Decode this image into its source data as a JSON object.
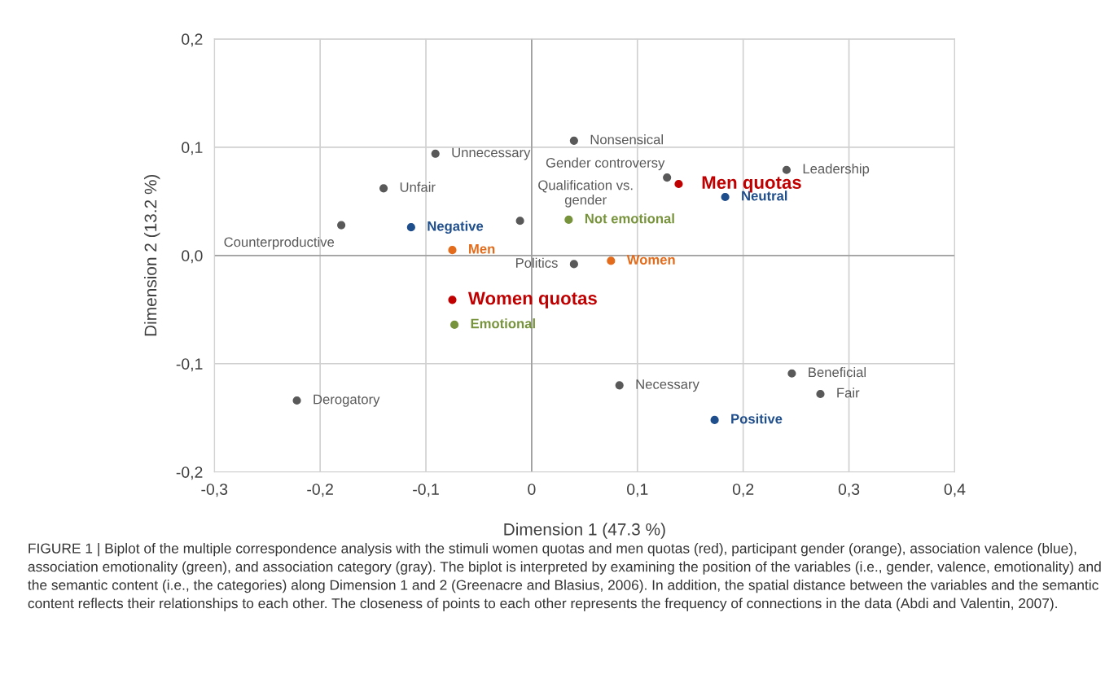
{
  "chart_data": {
    "type": "scatter",
    "xlabel": "Dimension 1 (47.3 %)",
    "ylabel": "Dimension 2 (13.2 %)",
    "xlim": [
      -0.3,
      0.4
    ],
    "ylim": [
      -0.2,
      0.2
    ],
    "xticks": [
      {
        "value": -0.3,
        "label": "-0,3"
      },
      {
        "value": -0.2,
        "label": "-0,2"
      },
      {
        "value": -0.1,
        "label": "-0,1"
      },
      0,
      {
        "value": 0.1,
        "label": "0,1"
      },
      {
        "value": 0.2,
        "label": "0,2"
      },
      {
        "value": 0.3,
        "label": "0,3"
      },
      {
        "value": 0.4,
        "label": "0,4"
      }
    ],
    "yticks": [
      {
        "value": -0.2,
        "label": "-0,2"
      },
      {
        "value": -0.1,
        "label": "-0,1"
      },
      {
        "value": 0,
        "label": "0,0"
      },
      {
        "value": 0.1,
        "label": "0,1"
      },
      {
        "value": 0.2,
        "label": "0,2"
      }
    ],
    "grid": true,
    "marker": "circle",
    "series": [
      {
        "color": "#c00000",
        "x": [
          -0.075,
          0.139
        ],
        "values": [
          -0.041,
          0.066
        ],
        "value_labels": [
          "Women quotas",
          "Men quotas"
        ]
      },
      {
        "color": "#e36c1c",
        "x": [
          -0.075,
          0.075
        ],
        "values": [
          0.005,
          -0.005
        ],
        "value_labels": [
          "Men",
          "Women"
        ]
      },
      {
        "color": "#1f4e8c",
        "x": [
          -0.114,
          0.183,
          0.173
        ],
        "values": [
          0.026,
          0.054,
          -0.152
        ],
        "value_labels": [
          "Negative",
          "Neutral",
          "Positive"
        ]
      },
      {
        "color": "#77933c",
        "x": [
          0.035,
          -0.073
        ],
        "values": [
          0.033,
          -0.064
        ],
        "value_labels": [
          "Not emotional",
          "Emotional"
        ]
      },
      {
        "color": "#595959",
        "x": [
          0.04,
          -0.091,
          -0.14,
          -0.18,
          -0.011,
          0.128,
          0.04,
          0.241,
          -0.222,
          0.083,
          0.246,
          0.273
        ],
        "values": [
          0.106,
          0.094,
          0.062,
          0.028,
          0.032,
          0.072,
          -0.008,
          0.079,
          -0.134,
          -0.12,
          -0.109,
          -0.128
        ],
        "value_labels": [
          "Nonsensical",
          "Unnecessary",
          "Unfair",
          "Counterproductive",
          "Qualification vs.\ngender",
          "Gender controversy",
          "Politics",
          "Leadership",
          "Derogatory",
          "Necessary",
          "Beneficial",
          "Fair"
        ]
      }
    ],
    "annotations": [
      "FIGURE 1 | Biplot of the multiple correspondence analysis with the stimuli women quotas and men quotas (red), participant gender (orange), association valence (blue), association emotionality (green), and association category (gray). The biplot is interpreted by examining the position of the variables (i.e., gender, valence, emotionality) and the semantic content (i.e., the categories) along Dimension 1 and 2 (Greenacre and Blasius, 2006). In addition, the spatial distance between the variables and the semantic content reflects their relationships to each other. The closeness of points to each other represents the frequency of connections in the data (Abdi and Valentin, 2007)."
    ]
  }
}
